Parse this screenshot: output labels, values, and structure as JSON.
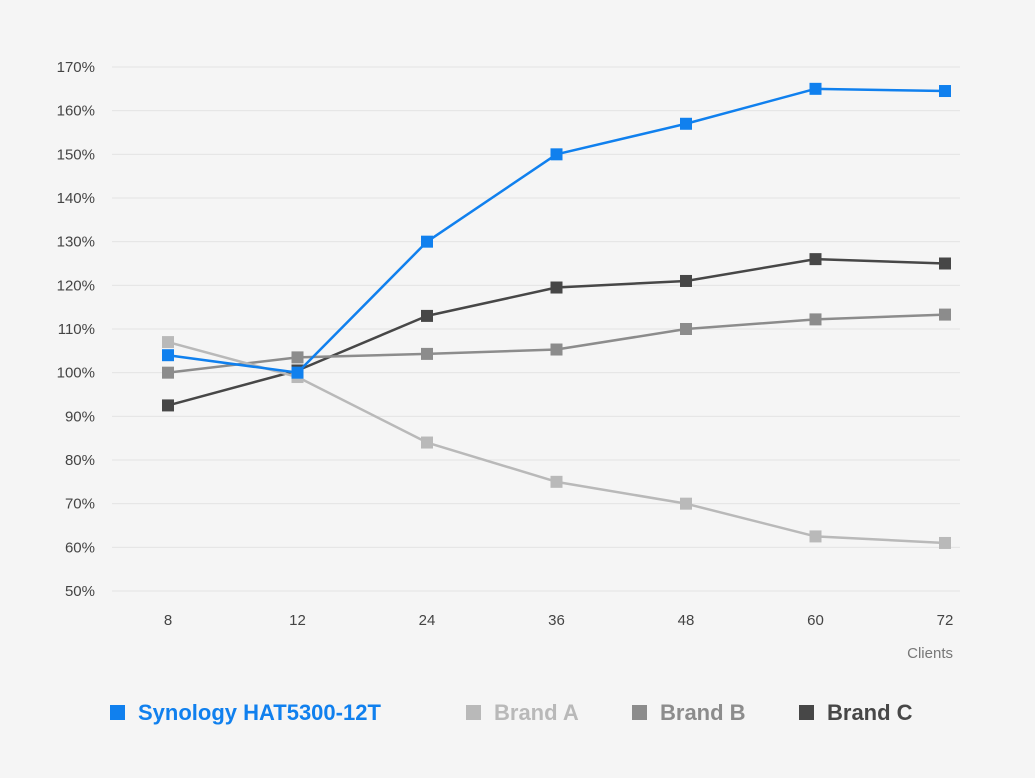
{
  "chart_data": {
    "type": "line",
    "categories": [
      "8",
      "12",
      "24",
      "36",
      "48",
      "60",
      "72"
    ],
    "xlabel": "Clients",
    "ylim": [
      50,
      170
    ],
    "yticks": [
      "50%",
      "60%",
      "70%",
      "80%",
      "90%",
      "100%",
      "110%",
      "120%",
      "130%",
      "140%",
      "150%",
      "160%",
      "170%"
    ],
    "grid": true,
    "legend_position": "bottom",
    "series": [
      {
        "name": "Synology HAT5300-12T",
        "color": "#1080ee",
        "values": [
          104,
          100,
          130,
          150,
          157,
          165,
          164.5
        ]
      },
      {
        "name": "Brand A",
        "color": "#b9b9b9",
        "values": [
          107,
          99,
          84,
          75,
          70,
          62.5,
          61
        ]
      },
      {
        "name": "Brand B",
        "color": "#8c8c8c",
        "values": [
          100,
          103.5,
          104.3,
          105.3,
          110,
          112.2,
          113.3
        ]
      },
      {
        "name": "Brand C",
        "color": "#474747",
        "values": [
          92.5,
          100.5,
          113,
          119.5,
          121,
          126,
          125
        ]
      }
    ]
  }
}
